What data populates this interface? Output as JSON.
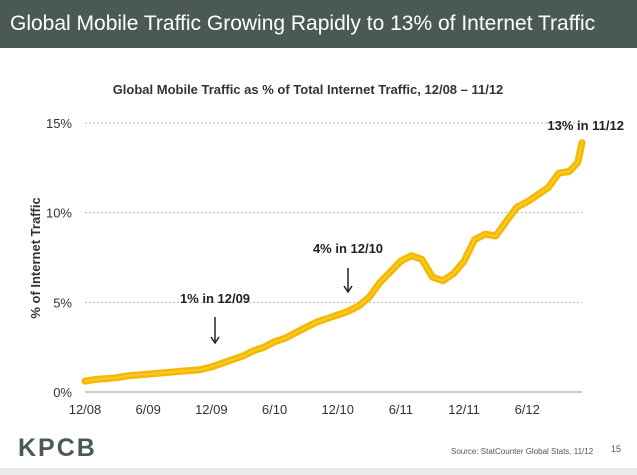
{
  "header": {
    "title": "Global Mobile Traffic Growing Rapidly to 13% of Internet Traffic"
  },
  "chart_data": {
    "type": "line",
    "title": "Global Mobile Traffic as % of Total Internet Traffic, 12/08 – 11/12",
    "xlabel": "",
    "ylabel": "% of Internet Traffic",
    "x_tick_labels": [
      "12/08",
      "6/09",
      "12/09",
      "6/10",
      "12/10",
      "6/11",
      "12/11",
      "6/12"
    ],
    "y_tick_labels": [
      "0%",
      "5%",
      "10%",
      "15%"
    ],
    "y_ticks": [
      0,
      5,
      10,
      15
    ],
    "ylim": [
      0,
      15
    ],
    "xlim": [
      0,
      47.2
    ],
    "x_unit": "months since 12/08",
    "grid": "horizontal dashed",
    "color": "#f5b800",
    "series": [
      {
        "x": [
          0,
          1,
          2,
          3,
          4,
          5,
          6,
          7,
          8,
          9,
          10,
          11,
          12,
          13,
          14,
          15,
          16,
          17,
          18,
          19,
          20,
          21,
          22,
          23,
          24,
          25,
          26,
          27,
          27.5,
          28,
          29,
          30,
          31,
          32,
          33,
          34,
          35,
          36,
          37,
          38,
          39,
          40,
          41,
          42,
          43,
          44,
          45,
          46,
          46.8,
          47.2
        ],
        "y": [
          0.6,
          0.7,
          0.75,
          0.8,
          0.9,
          0.95,
          1.0,
          1.05,
          1.1,
          1.15,
          1.2,
          1.25,
          1.4,
          1.6,
          1.8,
          2.0,
          2.3,
          2.5,
          2.8,
          3.0,
          3.3,
          3.6,
          3.9,
          4.1,
          4.3,
          4.5,
          4.8,
          5.3,
          5.7,
          6.1,
          6.7,
          7.3,
          7.6,
          7.4,
          6.4,
          6.2,
          6.6,
          7.3,
          8.5,
          8.8,
          8.7,
          9.5,
          10.3,
          10.6,
          11.0,
          11.4,
          12.2,
          12.3,
          12.8,
          13.9
        ]
      }
    ],
    "annotations": [
      {
        "label": "1% in 12/09",
        "x": 12,
        "y": 1.25
      },
      {
        "label": "4% in 12/10",
        "x": 24,
        "y": 4.3
      },
      {
        "label": "13% in 11/12",
        "x": 47,
        "y": 13.0
      }
    ]
  },
  "footer": {
    "logo": "KPCB",
    "source": "Source: StatCounter Global Stats, 11/12",
    "page_number": "15"
  }
}
